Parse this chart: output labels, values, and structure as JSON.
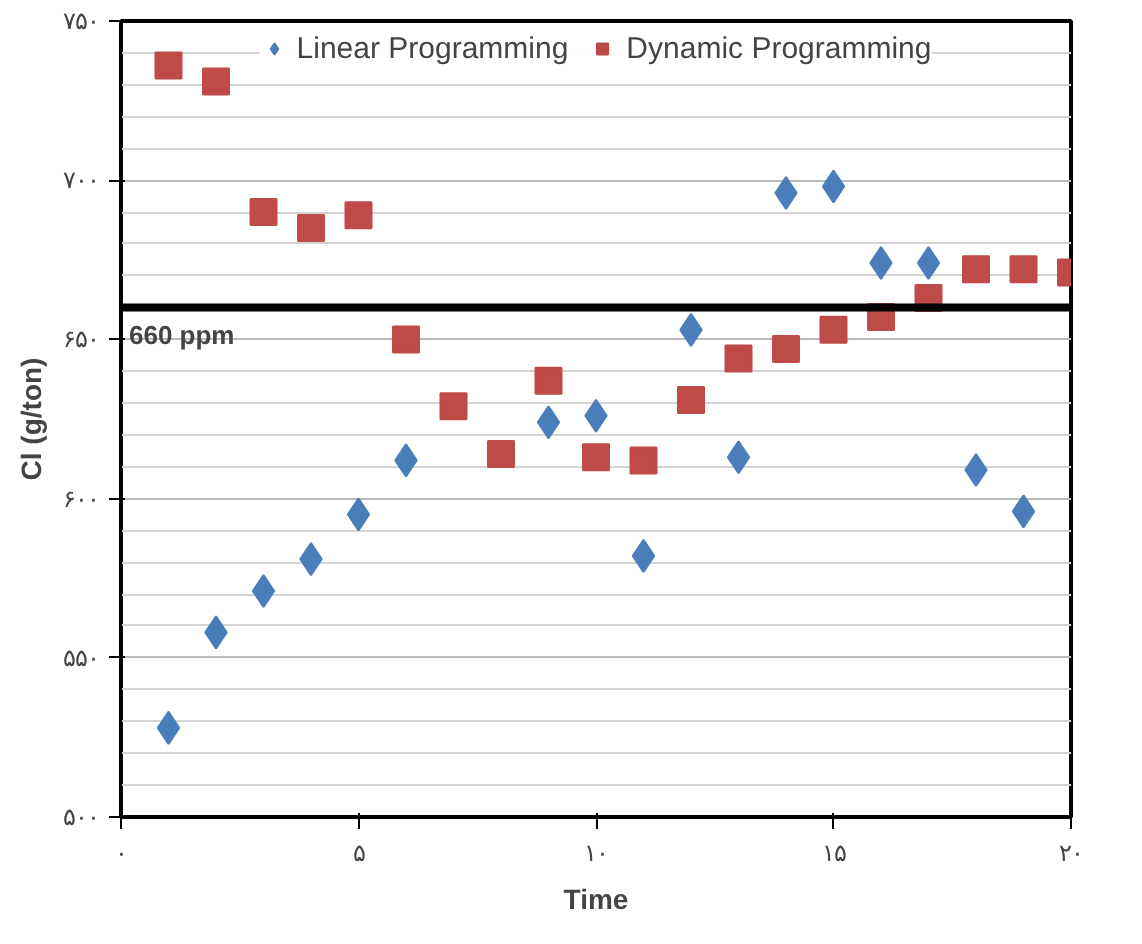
{
  "chart_data": {
    "type": "scatter",
    "xlabel": "Time",
    "ylabel": "Cl (g/ton)",
    "x": [
      1,
      2,
      3,
      4,
      5,
      6,
      7,
      8,
      9,
      10,
      11,
      12,
      13,
      14,
      15,
      16,
      17,
      18,
      19,
      20
    ],
    "series": [
      {
        "name": "Linear Programming",
        "color": "#4a7ebb",
        "marker": "diamond",
        "values": [
          528,
          558,
          571,
          581,
          595,
          612,
          null,
          null,
          624,
          626,
          582,
          653,
          613,
          696,
          698,
          674,
          674,
          609,
          596,
          null
        ]
      },
      {
        "name": "Dynamic Programming",
        "color": "#be4b48",
        "marker": "square",
        "values": [
          736,
          731,
          690,
          685,
          689,
          650,
          629,
          614,
          637,
          613,
          612,
          631,
          644,
          647,
          653,
          657,
          663,
          672,
          672,
          671
        ]
      }
    ],
    "xlim": [
      0,
      20
    ],
    "ylim": [
      500,
      750
    ],
    "xticks": [
      {
        "value": 0,
        "label": "۰"
      },
      {
        "value": 5,
        "label": "۵"
      },
      {
        "value": 10,
        "label": "۱۰"
      },
      {
        "value": 15,
        "label": "۱۵"
      },
      {
        "value": 20,
        "label": "۲۰"
      }
    ],
    "yticks": [
      {
        "value": 500,
        "label": "۵۰۰"
      },
      {
        "value": 550,
        "label": "۵۵۰"
      },
      {
        "value": 600,
        "label": "۶۰۰"
      },
      {
        "value": 650,
        "label": "۶۵۰"
      },
      {
        "value": 700,
        "label": "۷۰۰"
      },
      {
        "value": 750,
        "label": "۷۵۰"
      }
    ],
    "ref_lines": [
      {
        "axis": "y",
        "value": 660,
        "label": "660 ppm",
        "color": "#000000"
      }
    ],
    "grid": "y",
    "legend": "top"
  }
}
